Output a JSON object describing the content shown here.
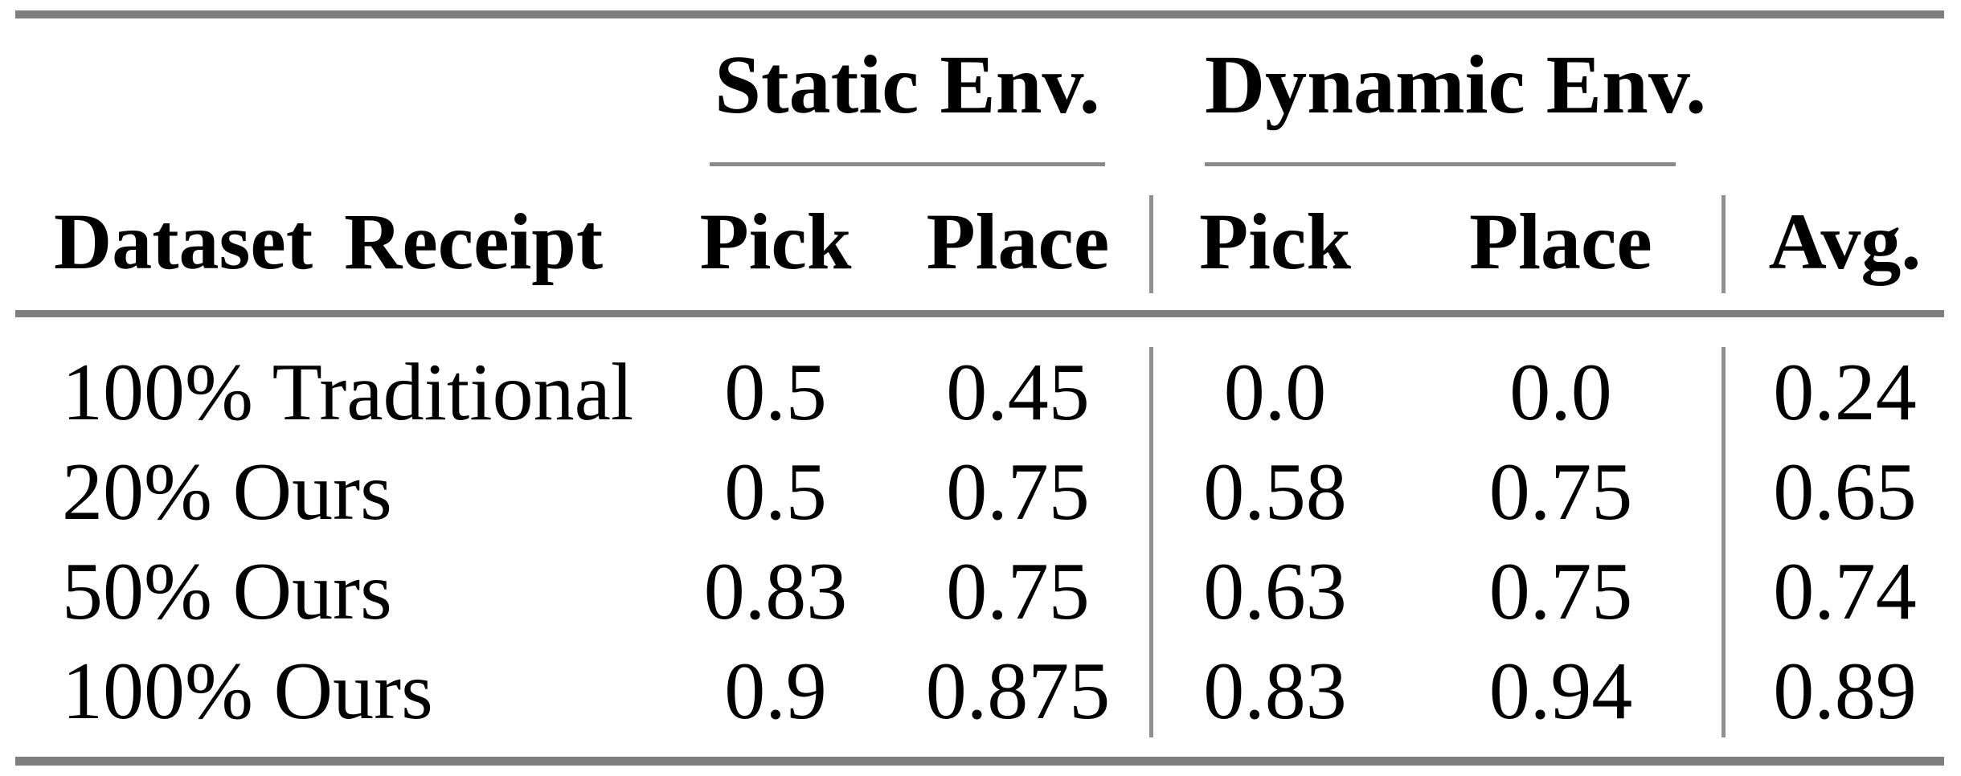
{
  "table": {
    "column_groups": [
      {
        "label": "Static Env."
      },
      {
        "label": "Dynamic Env."
      }
    ],
    "columns": [
      "Dataset Receipt",
      "Pick",
      "Place",
      "Pick",
      "Place",
      "Avg."
    ],
    "rows": [
      {
        "label": "100% Traditional",
        "values": [
          "0.5",
          "0.45",
          "0.0",
          "0.0",
          "0.24"
        ]
      },
      {
        "label": "20% Ours",
        "values": [
          "0.5",
          "0.75",
          "0.58",
          "0.75",
          "0.65"
        ]
      },
      {
        "label": "50% Ours",
        "values": [
          "0.83",
          "0.75",
          "0.63",
          "0.75",
          "0.74"
        ]
      },
      {
        "label": "100% Ours",
        "values": [
          "0.9",
          "0.875",
          "0.83",
          "0.94",
          "0.89"
        ]
      }
    ],
    "colors": {
      "text": "#000000",
      "thick_rule": "#7e7e7e",
      "thin_rule": "#8a8a8a",
      "vertical_rule": "#8f8f8f",
      "background": "#ffffff"
    }
  },
  "chart_data": {
    "type": "table",
    "title": "",
    "column_groups": [
      "Static Env.",
      "Dynamic Env."
    ],
    "columns": [
      "Dataset Receipt",
      "Static Pick",
      "Static Place",
      "Dynamic Pick",
      "Dynamic Place",
      "Avg."
    ],
    "rows": [
      [
        "100% Traditional",
        0.5,
        0.45,
        0.0,
        0.0,
        0.24
      ],
      [
        "20% Ours",
        0.5,
        0.75,
        0.58,
        0.75,
        0.65
      ],
      [
        "50% Ours",
        0.83,
        0.75,
        0.63,
        0.75,
        0.74
      ],
      [
        "100% Ours",
        0.9,
        0.875,
        0.83,
        0.94,
        0.89
      ]
    ]
  }
}
